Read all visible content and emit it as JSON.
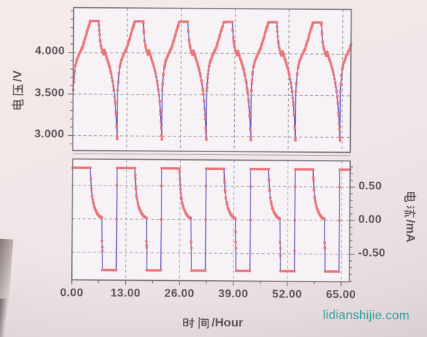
{
  "watermark": {
    "text": "lidianshijie.com",
    "color": "#2a9fa0"
  },
  "colors": {
    "line": "#6059c7",
    "marker": "#ee7376",
    "grid_top": "#8f8994",
    "grid_bottom": "#a59daa",
    "axis": "#76717b",
    "plot_bg": "#f6f2f6",
    "text": "#5d5559"
  },
  "axes": {
    "voltage_axis_title": "电压/V",
    "current_axis_title": "电流/mA",
    "time_axis_title": "时间/Hour"
  },
  "chart_data": [
    {
      "type": "line",
      "name": "battery_voltage_vs_time",
      "title": "",
      "ylabel": "电压/V",
      "xlabel": "时间/Hour",
      "xlim": [
        0,
        67
      ],
      "ylim": [
        2.82,
        4.54
      ],
      "grid": true,
      "x_gridlines": [
        13,
        26,
        39,
        52,
        65
      ],
      "y_gridlines": [
        3.0,
        3.5,
        4.0
      ],
      "y_ticks": [
        {
          "value": 4.0,
          "label": "4.000"
        },
        {
          "value": 3.5,
          "label": "3.500"
        },
        {
          "value": 3.0,
          "label": "3.000"
        }
      ],
      "y_minor_tick_step": 0.1,
      "cycle_period_hours": 10.75,
      "num_cycles": 6,
      "marker_sample_step_hours": 0.17,
      "cycle_points_t_v": [
        [
          0.0,
          3.55
        ],
        [
          0.12,
          3.64
        ],
        [
          0.28,
          3.75
        ],
        [
          0.5,
          3.84
        ],
        [
          0.85,
          3.91
        ],
        [
          1.3,
          3.97
        ],
        [
          1.85,
          4.03
        ],
        [
          2.15,
          4.06
        ],
        [
          2.45,
          4.11
        ],
        [
          2.75,
          4.16
        ],
        [
          3.05,
          4.21
        ],
        [
          3.35,
          4.27
        ],
        [
          3.6,
          4.31
        ],
        [
          3.8,
          4.33
        ],
        [
          3.95,
          4.37
        ],
        [
          4.15,
          4.38
        ],
        [
          6.05,
          4.38
        ],
        [
          6.2,
          4.27
        ],
        [
          6.4,
          4.15
        ],
        [
          6.65,
          4.08
        ],
        [
          6.95,
          4.02
        ],
        [
          7.25,
          3.98
        ],
        [
          7.5,
          4.03
        ],
        [
          7.8,
          3.98
        ],
        [
          8.1,
          3.93
        ],
        [
          8.45,
          3.88
        ],
        [
          8.8,
          3.82
        ],
        [
          9.15,
          3.75
        ],
        [
          9.5,
          3.66
        ],
        [
          9.85,
          3.55
        ],
        [
          10.15,
          3.42
        ],
        [
          10.4,
          3.26
        ],
        [
          10.58,
          3.1
        ],
        [
          10.7,
          2.99
        ],
        [
          10.74,
          2.96
        ]
      ]
    },
    {
      "type": "line",
      "name": "battery_current_vs_time",
      "title": "",
      "ylabel": "电流/mA",
      "xlabel": "时间/Hour",
      "xlim": [
        0,
        67
      ],
      "ylim": [
        -0.91,
        0.89
      ],
      "grid": true,
      "x_gridlines": [
        13,
        26,
        39,
        52,
        65
      ],
      "y_gridlines": [
        -0.5,
        0.0,
        0.5
      ],
      "y_ticks": [
        {
          "value": 0.5,
          "label": "0.50"
        },
        {
          "value": 0.0,
          "label": "0.00"
        },
        {
          "value": -0.5,
          "label": "-0.50"
        }
      ],
      "x_ticks": [
        {
          "value": 0,
          "label": "0.00"
        },
        {
          "value": 13,
          "label": "13.00"
        },
        {
          "value": 26,
          "label": "26.00"
        },
        {
          "value": 39,
          "label": "39.00"
        },
        {
          "value": 52,
          "label": "52.00"
        },
        {
          "value": 65,
          "label": "65.00"
        }
      ],
      "y_minor_tick_step": 0.1,
      "x_minor_tick_step": 6.5,
      "cycle_period_hours": 10.75,
      "num_cycles": 6,
      "marker_sample_step_hours": 0.17,
      "cycle_points_t_mA": [
        [
          0.0,
          0.76
        ],
        [
          4.3,
          0.76
        ],
        [
          4.42,
          0.6
        ],
        [
          4.58,
          0.45
        ],
        [
          4.78,
          0.33
        ],
        [
          5.05,
          0.24
        ],
        [
          5.35,
          0.17
        ],
        [
          5.7,
          0.12
        ],
        [
          6.05,
          0.08
        ],
        [
          6.4,
          0.05
        ],
        [
          6.7,
          0.035
        ],
        [
          6.95,
          0.025
        ],
        [
          7.15,
          0.02
        ],
        [
          7.22,
          -0.33
        ],
        [
          7.3,
          -0.42
        ],
        [
          7.36,
          -0.76
        ],
        [
          10.66,
          -0.76
        ],
        [
          10.71,
          -0.76
        ],
        [
          10.735,
          0.0
        ],
        [
          10.748,
          0.5
        ]
      ]
    }
  ]
}
